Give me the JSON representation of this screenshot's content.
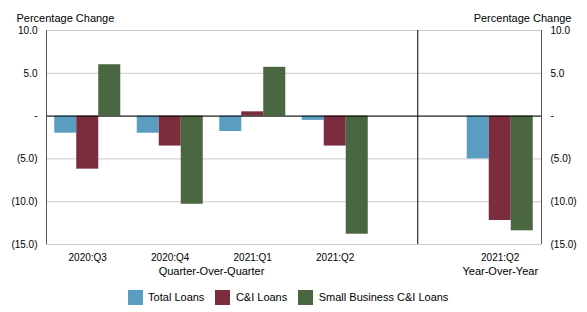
{
  "chart_data": {
    "type": "bar",
    "categories": [
      "2020:Q3",
      "2020:Q4",
      "2021:Q1",
      "2021:Q2",
      "2021:Q2"
    ],
    "category_groups": [
      "Quarter-Over-Quarter",
      "Quarter-Over-Quarter",
      "Quarter-Over-Quarter",
      "Quarter-Over-Quarter",
      "Year-Over-Year"
    ],
    "series": [
      {
        "name": "Total Loans",
        "color": "#5b9dc0",
        "values": [
          -2.0,
          -2.0,
          -1.8,
          -0.5,
          -5.0
        ]
      },
      {
        "name": "C&I Loans",
        "color": "#7b2d3e",
        "values": [
          -6.2,
          -3.5,
          0.5,
          -3.5,
          -12.2
        ]
      },
      {
        "name": "Small Business C&I Loans",
        "color": "#4a6741",
        "values": [
          6.0,
          -10.3,
          5.7,
          -13.8,
          -13.4
        ]
      }
    ],
    "ylabel": "Percentage Change",
    "y2label": "Percentage Change",
    "ylim": [
      -15.0,
      10.0
    ],
    "yticks": [
      {
        "value": 10.0,
        "label": "10.0"
      },
      {
        "value": 5.0,
        "label": "5.0"
      },
      {
        "value": 0.0,
        "label": "-"
      },
      {
        "value": -5.0,
        "label": "(5.0)"
      },
      {
        "value": -10.0,
        "label": "(10.0)"
      },
      {
        "value": -15.0,
        "label": "(15.0)"
      }
    ],
    "y2lim": [
      -15.0,
      10.0
    ],
    "y2ticks": [
      {
        "value": 10.0,
        "label": "10.0"
      },
      {
        "value": 5.0,
        "label": "5.0"
      },
      {
        "value": 0.0,
        "label": "-"
      },
      {
        "value": -5.0,
        "label": "(5.0)"
      },
      {
        "value": -10.0,
        "label": "(10.0)"
      },
      {
        "value": -15.0,
        "label": "(15.0)"
      }
    ],
    "grid": true,
    "legend": "bottom"
  }
}
